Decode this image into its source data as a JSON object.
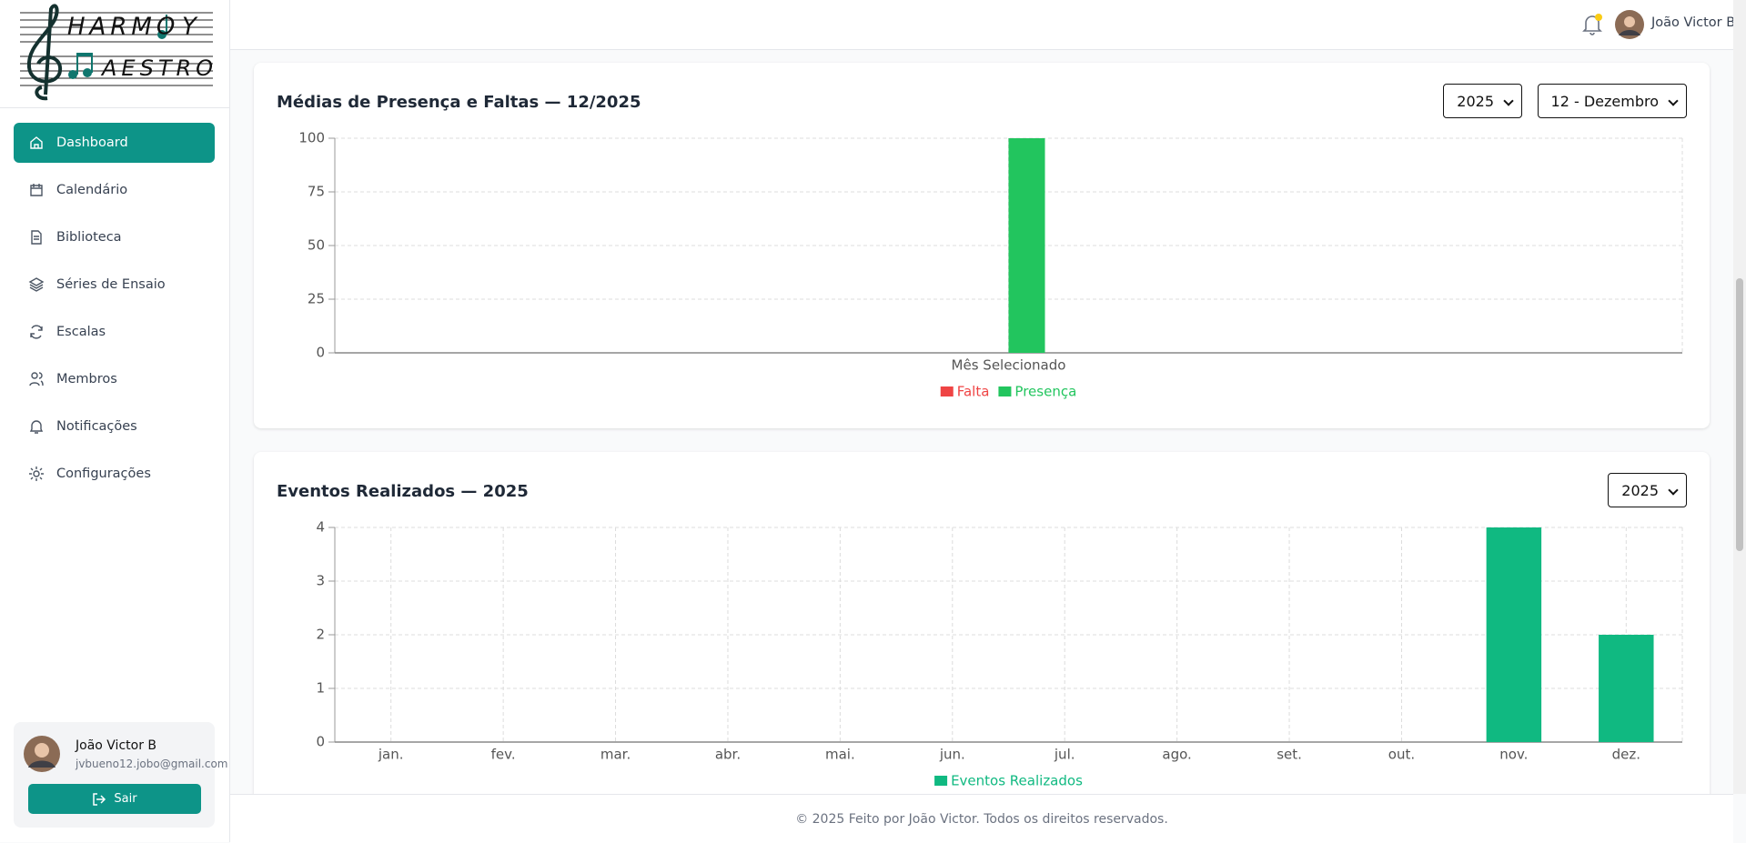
{
  "sidebar": {
    "logo": [
      "HARMO",
      "Y",
      "AESTRO"
    ],
    "nav": [
      "Dashboard",
      "Calendário",
      "Biblioteca",
      "Séries de Ensaio",
      "Escalas",
      "Membros",
      "Notificações",
      "Configurações"
    ],
    "user": {
      "name": "João Victor B",
      "email": "jvbueno12.jobo@gmail.com",
      "logout": "Sair"
    }
  },
  "header": {
    "user_name": "João Victor B"
  },
  "charts": [
    {
      "type": "bar",
      "title": "Médias de Presença e Faltas — 12/2025",
      "filters": [
        "2025",
        "12 - Dezembro"
      ],
      "categories": [
        "Mês Selecionado"
      ],
      "series": [
        {
          "name": "Falta",
          "color": "#ef4444",
          "values": [
            0
          ]
        },
        {
          "name": "Presença",
          "color": "#22c55e",
          "values": [
            100
          ]
        }
      ],
      "ylim": [
        0,
        100
      ],
      "yticks": [
        0,
        25,
        50,
        75,
        100
      ],
      "grid": true
    },
    {
      "type": "bar",
      "title": "Eventos Realizados — 2025",
      "filters": [
        "2025"
      ],
      "categories": [
        "jan.",
        "fev.",
        "mar.",
        "abr.",
        "mai.",
        "jun.",
        "jul.",
        "ago.",
        "set.",
        "out.",
        "nov.",
        "dez."
      ],
      "series": [
        {
          "name": "Eventos Realizados",
          "color": "#10b981",
          "values": [
            0,
            0,
            0,
            0,
            0,
            0,
            0,
            0,
            0,
            0,
            4,
            2
          ]
        }
      ],
      "ylim": [
        0,
        4
      ],
      "yticks": [
        0,
        1,
        2,
        3,
        4
      ],
      "grid": true
    }
  ],
  "footer": "© 2025 Feito por João Victor. Todos os direitos reservados."
}
